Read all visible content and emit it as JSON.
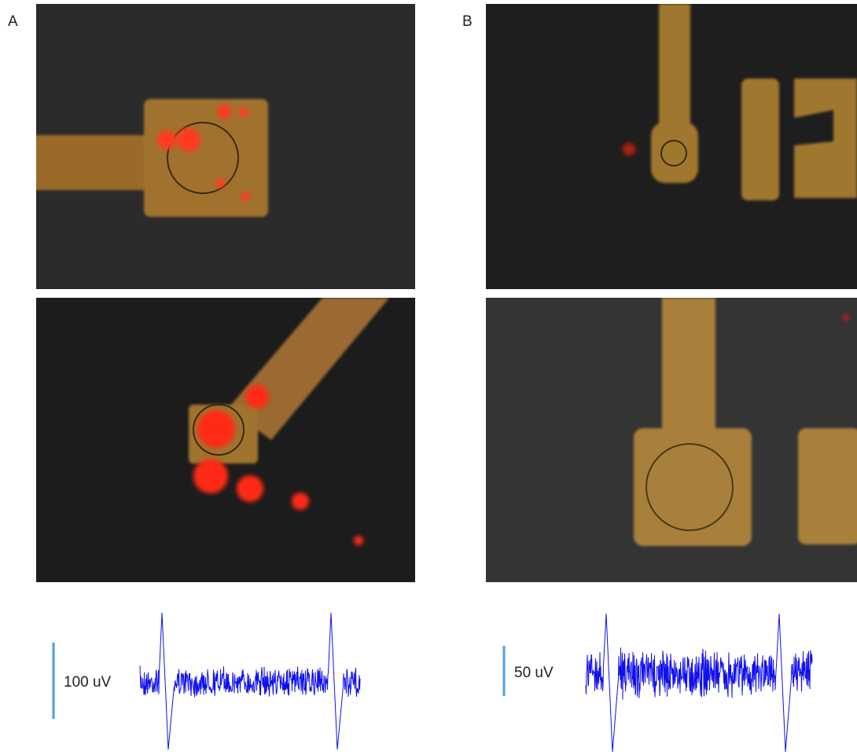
{
  "panels": [
    {
      "label": "A",
      "scale_bar_label": "100 uV"
    },
    {
      "label": "B",
      "scale_bar_label": "50 uV"
    }
  ]
}
